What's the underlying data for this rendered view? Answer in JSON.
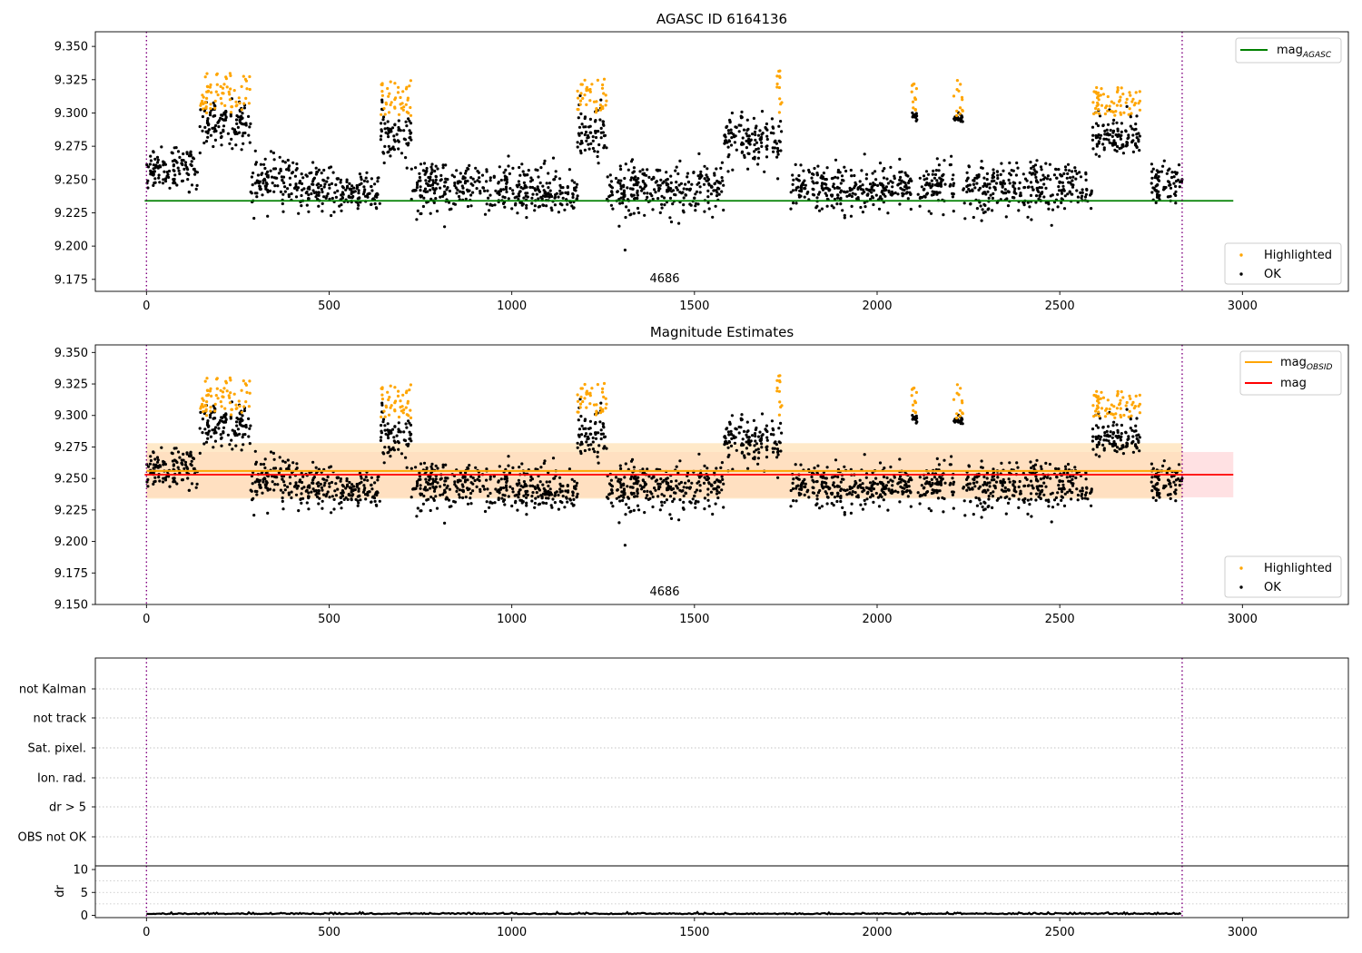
{
  "figure": {
    "obsid_annotation": "4686",
    "x_ticks": [
      0,
      500,
      1000,
      1500,
      2000,
      2500,
      3000
    ],
    "colors": {
      "highlighted": "#ffa500",
      "ok": "#000000",
      "mag_agasc": "#008000",
      "mag_obsid": "#ffa500",
      "mag": "#ff0000",
      "obs_boundary": "#800080",
      "band_obsid": "#ffe0b2",
      "band_mag": "#ffc8cc"
    }
  },
  "chart_data": [
    {
      "type": "scatter",
      "title": "AGASC ID 6164136",
      "xlim": [
        -140,
        3290
      ],
      "ylim": [
        9.166,
        9.361
      ],
      "y_ticks": [
        "9.175",
        "9.200",
        "9.225",
        "9.250",
        "9.275",
        "9.300",
        "9.325",
        "9.350"
      ],
      "legend_lines": [
        {
          "label": "mag",
          "sub": "AGASC"
        }
      ],
      "legend_points": [
        "Highlighted",
        "OK"
      ],
      "mag_agasc": 9.234,
      "obs_boundaries": [
        0,
        2835
      ],
      "highlighted_intervals": [
        {
          "x": [
            145,
            285
          ],
          "y": [
            9.3,
            9.33
          ]
        },
        {
          "x": [
            640,
            725
          ],
          "y": [
            9.298,
            9.328
          ]
        },
        {
          "x": [
            1180,
            1260
          ],
          "y": [
            9.3,
            9.326
          ]
        },
        {
          "x": [
            1725,
            1740
          ],
          "y": [
            9.3,
            9.332
          ]
        },
        {
          "x": [
            2095,
            2110
          ],
          "y": [
            9.298,
            9.322
          ]
        },
        {
          "x": [
            2210,
            2235
          ],
          "y": [
            9.298,
            9.326
          ]
        },
        {
          "x": [
            2590,
            2720
          ],
          "y": [
            9.298,
            9.32
          ]
        }
      ],
      "outlier_points": [
        {
          "x": 1310,
          "y": 9.197
        }
      ]
    },
    {
      "type": "scatter",
      "title": "Magnitude Estimates",
      "xlim": [
        -140,
        3290
      ],
      "ylim": [
        9.15,
        9.356
      ],
      "y_ticks": [
        "9.150",
        "9.175",
        "9.200",
        "9.225",
        "9.250",
        "9.275",
        "9.300",
        "9.325",
        "9.350"
      ],
      "legend_lines": [
        {
          "label": "mag",
          "sub": "OBSID"
        },
        {
          "label": "mag",
          "sub": ""
        }
      ],
      "legend_points": [
        "Highlighted",
        "OK"
      ],
      "mag_obsid": 9.256,
      "mag_obsid_band": [
        9.234,
        9.278
      ],
      "mag": 9.253,
      "mag_band": [
        9.235,
        9.271
      ],
      "obs_boundaries": [
        0,
        2835
      ]
    },
    {
      "type": "table",
      "flag_labels": [
        "not Kalman",
        "not track",
        "Sat. pixel.",
        "Ion. rad.",
        "dr > 5",
        "OBS not OK"
      ],
      "obs_boundaries": [
        0,
        2835
      ]
    },
    {
      "type": "line",
      "ylabel": "dr",
      "ylim": [
        -0.5,
        10.8
      ],
      "y_ticks": [
        "0",
        "5",
        "10"
      ],
      "dr_typical": 0.25,
      "obs_boundaries": [
        0,
        2835
      ]
    }
  ]
}
